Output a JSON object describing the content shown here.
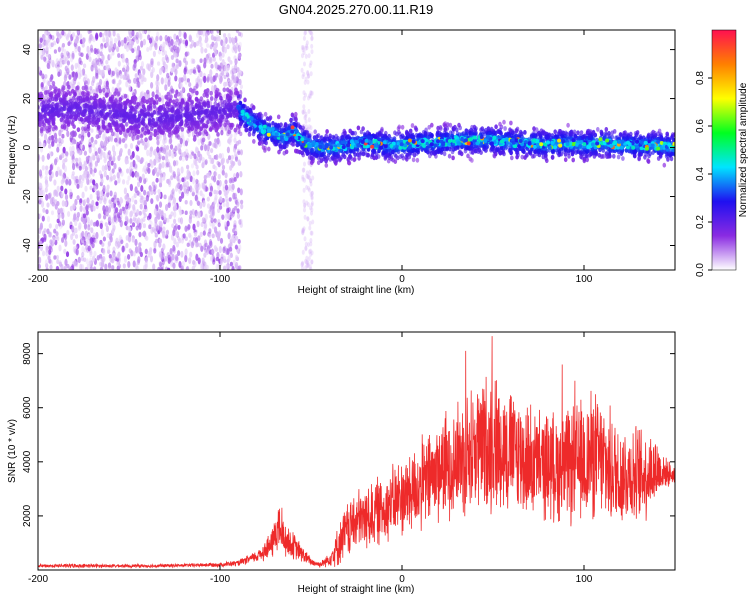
{
  "title": "GN04.2025.270.00.11.R19",
  "colors": {
    "snr_line": "#ee2a2a",
    "axis": "#000000",
    "background": "#ffffff"
  },
  "chart_data": [
    {
      "type": "heatmap",
      "name": "spectrogram",
      "xlabel": "Height of straight line (km)",
      "ylabel": "Frequency (Hz)",
      "xlim": [
        -200,
        150
      ],
      "ylim": [
        -50,
        48
      ],
      "xticks": [
        "-200",
        "-100",
        "0",
        "100"
      ],
      "yticks": [
        "40",
        "20",
        "0",
        "-20",
        "-40"
      ],
      "grid": false,
      "ridge": {
        "description_values_hz_by_height_km": true,
        "x": [
          -200,
          -180,
          -160,
          -140,
          -120,
          -100,
          -90,
          -85,
          -80,
          -75,
          -70,
          -65,
          -60,
          -55,
          -50,
          -45,
          -40,
          -30,
          -20,
          -10,
          0,
          10,
          20,
          30,
          40,
          50,
          60,
          70,
          80,
          90,
          100,
          110,
          120,
          130,
          140,
          150
        ],
        "y": [
          15,
          16,
          14,
          12,
          13,
          15,
          16,
          12,
          9,
          7,
          6,
          4,
          7,
          3,
          1,
          0,
          0,
          1,
          2,
          1,
          1,
          2,
          2,
          3,
          3,
          3,
          2,
          2,
          1,
          2,
          1,
          2,
          1,
          1,
          1,
          0
        ]
      },
      "colorbar": {
        "label": "Normalized spectral amplitude",
        "range": [
          0,
          1
        ],
        "ticks": [
          "0.0",
          "0.2",
          "0.4",
          "0.6",
          "0.8"
        ],
        "stops": [
          "#ffffff",
          "#8a2be2",
          "#1f10f0",
          "#00e5ff",
          "#00ff20",
          "#ffff00",
          "#ff8000",
          "#ff1050"
        ]
      }
    },
    {
      "type": "line",
      "name": "snr",
      "xlabel": "Height of straight line (km)",
      "ylabel": "SNR (10 * v/v)",
      "xlim": [
        -200,
        150
      ],
      "ylim": [
        0,
        8800
      ],
      "xticks": [
        "-200",
        "-100",
        "0",
        "100"
      ],
      "yticks": [
        "8000",
        "6000",
        "4000",
        "2000"
      ],
      "grid": false,
      "series": [
        {
          "name": "SNR",
          "x": [
            -200,
            -180,
            -160,
            -140,
            -120,
            -100,
            -90,
            -80,
            -72,
            -68,
            -64,
            -60,
            -55,
            -50,
            -45,
            -40,
            -35,
            -30,
            -25,
            -20,
            -15,
            -10,
            -5,
            0,
            5,
            10,
            15,
            20,
            25,
            30,
            35,
            40,
            45,
            50,
            55,
            60,
            65,
            70,
            75,
            80,
            85,
            90,
            95,
            100,
            105,
            110,
            115,
            120,
            125,
            130,
            135,
            140,
            145,
            150
          ],
          "y": [
            150,
            160,
            150,
            150,
            170,
            200,
            250,
            500,
            900,
            1600,
            1100,
            900,
            600,
            300,
            200,
            400,
            900,
            1500,
            1800,
            1900,
            2100,
            2300,
            2500,
            2700,
            2900,
            3100,
            3400,
            3700,
            3900,
            4100,
            4300,
            4500,
            4600,
            4700,
            4600,
            4400,
            4200,
            4000,
            3900,
            3900,
            3800,
            3800,
            3900,
            4000,
            4300,
            4000,
            3700,
            3500,
            3600,
            3500,
            3600,
            3700,
            3600,
            3500
          ],
          "spread": [
            60,
            70,
            60,
            60,
            60,
            80,
            100,
            200,
            500,
            900,
            600,
            500,
            300,
            150,
            100,
            250,
            700,
            1000,
            1100,
            1100,
            1200,
            1200,
            1300,
            1400,
            1500,
            1600,
            1700,
            1800,
            1900,
            2000,
            2100,
            2300,
            2500,
            2400,
            2300,
            2200,
            2100,
            2000,
            1900,
            1900,
            1900,
            2000,
            2100,
            2200,
            2300,
            2100,
            2000,
            1900,
            1800,
            1700,
            1600,
            1200,
            500,
            300
          ],
          "peaks": [
            {
              "x": 49.5,
              "y": 8650
            },
            {
              "x": 35,
              "y": 8100
            },
            {
              "x": 88,
              "y": 7600
            },
            {
              "x": 95,
              "y": 7000
            },
            {
              "x": -66,
              "y": 2300
            }
          ]
        }
      ]
    }
  ]
}
